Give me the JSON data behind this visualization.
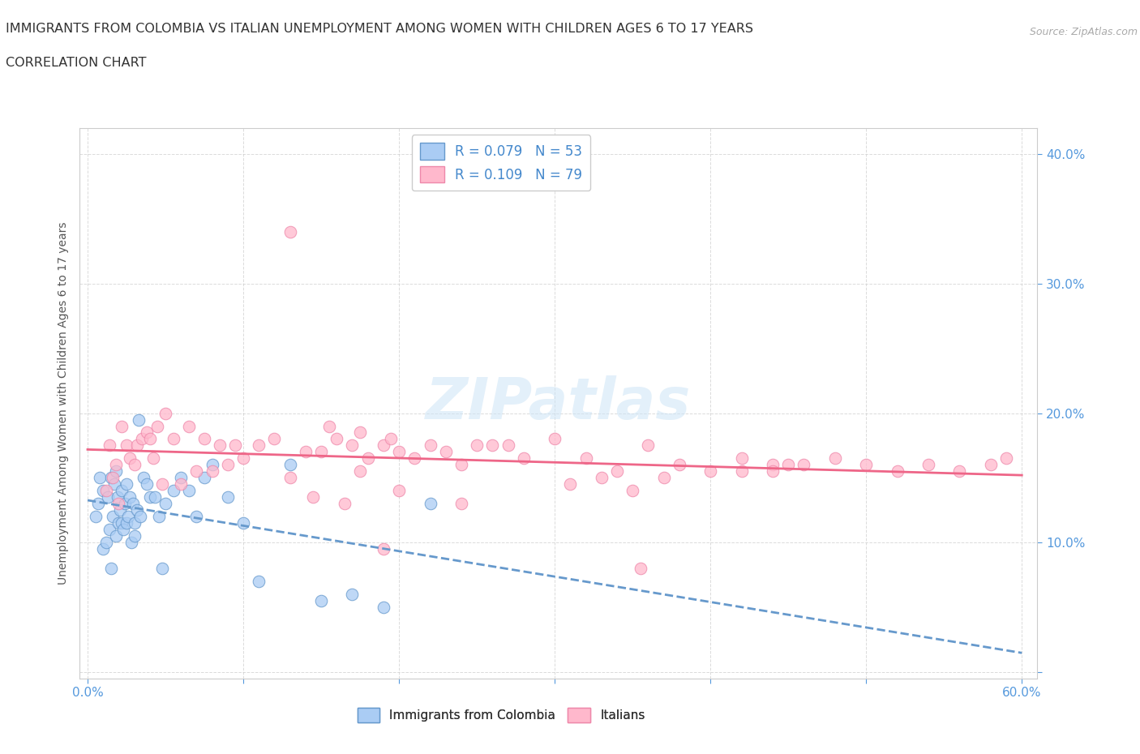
{
  "title": "IMMIGRANTS FROM COLOMBIA VS ITALIAN UNEMPLOYMENT AMONG WOMEN WITH CHILDREN AGES 6 TO 17 YEARS",
  "subtitle": "CORRELATION CHART",
  "source": "Source: ZipAtlas.com",
  "ylabel": "Unemployment Among Women with Children Ages 6 to 17 years",
  "xlim": [
    -0.005,
    0.61
  ],
  "ylim": [
    -0.005,
    0.42
  ],
  "xticks": [
    0.0,
    0.1,
    0.2,
    0.3,
    0.4,
    0.5,
    0.6
  ],
  "yticks": [
    0.0,
    0.1,
    0.2,
    0.3,
    0.4
  ],
  "ytick_labels": [
    "",
    "10.0%",
    "20.0%",
    "30.0%",
    "40.0%"
  ],
  "xtick_labels": [
    "0.0%",
    "",
    "",
    "",
    "",
    "",
    "60.0%"
  ],
  "colombia_color": "#aaccf4",
  "colombia_edge": "#6699cc",
  "italian_color": "#ffb8cc",
  "italian_edge": "#ee88aa",
  "trend_colombia_color": "#6699cc",
  "trend_italian_color": "#ee6688",
  "r_colombia": 0.079,
  "n_colombia": 53,
  "r_italian": 0.109,
  "n_italian": 79,
  "watermark": "ZIPatlas",
  "colombia_x": [
    0.005,
    0.007,
    0.008,
    0.01,
    0.01,
    0.012,
    0.013,
    0.014,
    0.015,
    0.015,
    0.016,
    0.017,
    0.018,
    0.018,
    0.019,
    0.02,
    0.021,
    0.022,
    0.022,
    0.023,
    0.024,
    0.025,
    0.025,
    0.026,
    0.027,
    0.028,
    0.029,
    0.03,
    0.03,
    0.032,
    0.033,
    0.034,
    0.036,
    0.038,
    0.04,
    0.043,
    0.046,
    0.048,
    0.05,
    0.055,
    0.06,
    0.065,
    0.07,
    0.075,
    0.08,
    0.09,
    0.1,
    0.11,
    0.13,
    0.15,
    0.17,
    0.19,
    0.22
  ],
  "colombia_y": [
    0.12,
    0.13,
    0.15,
    0.095,
    0.14,
    0.1,
    0.135,
    0.11,
    0.15,
    0.08,
    0.12,
    0.145,
    0.155,
    0.105,
    0.135,
    0.115,
    0.125,
    0.14,
    0.115,
    0.11,
    0.13,
    0.115,
    0.145,
    0.12,
    0.135,
    0.1,
    0.13,
    0.115,
    0.105,
    0.125,
    0.195,
    0.12,
    0.15,
    0.145,
    0.135,
    0.135,
    0.12,
    0.08,
    0.13,
    0.14,
    0.15,
    0.14,
    0.12,
    0.15,
    0.16,
    0.135,
    0.115,
    0.07,
    0.16,
    0.055,
    0.06,
    0.05,
    0.13
  ],
  "italian_x": [
    0.012,
    0.014,
    0.016,
    0.018,
    0.02,
    0.022,
    0.025,
    0.027,
    0.03,
    0.032,
    0.035,
    0.038,
    0.04,
    0.042,
    0.045,
    0.048,
    0.05,
    0.055,
    0.06,
    0.065,
    0.07,
    0.075,
    0.08,
    0.085,
    0.09,
    0.095,
    0.1,
    0.11,
    0.12,
    0.13,
    0.14,
    0.15,
    0.155,
    0.16,
    0.17,
    0.175,
    0.18,
    0.19,
    0.195,
    0.2,
    0.21,
    0.22,
    0.23,
    0.24,
    0.25,
    0.26,
    0.27,
    0.28,
    0.3,
    0.32,
    0.34,
    0.36,
    0.38,
    0.4,
    0.42,
    0.44,
    0.46,
    0.48,
    0.5,
    0.52,
    0.54,
    0.56,
    0.58,
    0.59,
    0.31,
    0.33,
    0.35,
    0.37,
    0.42,
    0.45,
    0.19,
    0.145,
    0.175,
    0.2,
    0.165,
    0.24,
    0.13,
    0.44,
    0.355
  ],
  "italian_y": [
    0.14,
    0.175,
    0.15,
    0.16,
    0.13,
    0.19,
    0.175,
    0.165,
    0.16,
    0.175,
    0.18,
    0.185,
    0.18,
    0.165,
    0.19,
    0.145,
    0.2,
    0.18,
    0.145,
    0.19,
    0.155,
    0.18,
    0.155,
    0.175,
    0.16,
    0.175,
    0.165,
    0.175,
    0.18,
    0.15,
    0.17,
    0.17,
    0.19,
    0.18,
    0.175,
    0.185,
    0.165,
    0.175,
    0.18,
    0.17,
    0.165,
    0.175,
    0.17,
    0.16,
    0.175,
    0.175,
    0.175,
    0.165,
    0.18,
    0.165,
    0.155,
    0.175,
    0.16,
    0.155,
    0.165,
    0.16,
    0.16,
    0.165,
    0.16,
    0.155,
    0.16,
    0.155,
    0.16,
    0.165,
    0.145,
    0.15,
    0.14,
    0.15,
    0.155,
    0.16,
    0.095,
    0.135,
    0.155,
    0.14,
    0.13,
    0.13,
    0.34,
    0.155,
    0.08
  ]
}
